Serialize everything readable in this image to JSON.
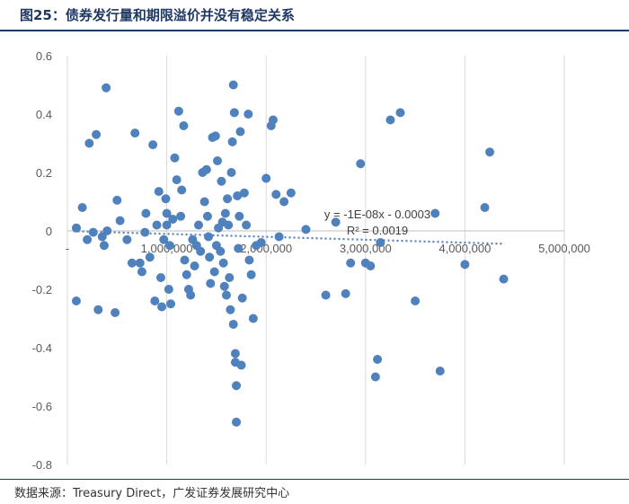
{
  "figure": {
    "title": "图25：债券发行量和期限溢价并没有稳定关系",
    "source": "数据来源：Treasury Direct，广发证券发展研究中心"
  },
  "colors": {
    "title": "#1f3864",
    "point": "#4f81bd",
    "trendline": "#4f81bd",
    "grid": "#d9d9d9"
  },
  "chart_data": {
    "type": "scatter",
    "title": "",
    "xlabel": "",
    "ylabel": "",
    "xlim": [
      0,
      5000000
    ],
    "ylim": [
      -0.8,
      0.6
    ],
    "x_ticks": [
      0,
      1000000,
      2000000,
      3000000,
      4000000,
      5000000
    ],
    "x_tick_labels": [
      "-",
      "1,000,000",
      "2,000,000",
      "3,000,000",
      "4,000,000",
      "5,000,000"
    ],
    "y_ticks": [
      0.6,
      0.4,
      0.2,
      0,
      -0.2,
      -0.4,
      -0.6,
      -0.8
    ],
    "y_tick_labels": [
      "0.6",
      "0.4",
      "0.2",
      "0",
      "-0.2",
      "-0.4",
      "-0.6",
      "-0.8"
    ],
    "grid": "vertical",
    "trendline": {
      "slope": -1e-08,
      "intercept": -0.0003,
      "equation": "y = -1E-08x - 0.0003",
      "r_squared": "R² = 0.0019"
    },
    "points": [
      [
        90000,
        -0.24
      ],
      [
        90000,
        0.01
      ],
      [
        150000,
        0.08
      ],
      [
        200000,
        -0.03
      ],
      [
        220000,
        0.3
      ],
      [
        260000,
        -0.005
      ],
      [
        290000,
        0.33
      ],
      [
        310000,
        -0.27
      ],
      [
        350000,
        -0.02
      ],
      [
        370000,
        -0.05
      ],
      [
        390000,
        0.49
      ],
      [
        400000,
        0.0
      ],
      [
        480000,
        -0.28
      ],
      [
        500000,
        0.105
      ],
      [
        530000,
        0.035
      ],
      [
        600000,
        -0.03
      ],
      [
        650000,
        -0.11
      ],
      [
        680000,
        0.335
      ],
      [
        730000,
        -0.11
      ],
      [
        750000,
        -0.14
      ],
      [
        780000,
        -0.005
      ],
      [
        790000,
        0.06
      ],
      [
        830000,
        -0.09
      ],
      [
        860000,
        0.295
      ],
      [
        880000,
        -0.24
      ],
      [
        900000,
        0.02
      ],
      [
        920000,
        0.135
      ],
      [
        940000,
        -0.16
      ],
      [
        950000,
        -0.26
      ],
      [
        970000,
        -0.03
      ],
      [
        990000,
        0.11
      ],
      [
        1000000,
        0.06
      ],
      [
        1000000,
        0.02
      ],
      [
        1020000,
        -0.2
      ],
      [
        1030000,
        -0.05
      ],
      [
        1040000,
        -0.25
      ],
      [
        1060000,
        0.04
      ],
      [
        1080000,
        0.25
      ],
      [
        1100000,
        0.175
      ],
      [
        1120000,
        0.41
      ],
      [
        1140000,
        0.05
      ],
      [
        1150000,
        0.14
      ],
      [
        1170000,
        0.36
      ],
      [
        1180000,
        -0.1
      ],
      [
        1200000,
        -0.15
      ],
      [
        1220000,
        -0.2
      ],
      [
        1240000,
        -0.22
      ],
      [
        1260000,
        -0.03
      ],
      [
        1280000,
        -0.12
      ],
      [
        1300000,
        -0.05
      ],
      [
        1320000,
        0.02
      ],
      [
        1340000,
        -0.07
      ],
      [
        1360000,
        0.2
      ],
      [
        1380000,
        0.1
      ],
      [
        1400000,
        0.21
      ],
      [
        1410000,
        0.05
      ],
      [
        1420000,
        -0.02
      ],
      [
        1430000,
        -0.09
      ],
      [
        1440000,
        -0.18
      ],
      [
        1460000,
        0.32
      ],
      [
        1480000,
        -0.14
      ],
      [
        1490000,
        0.325
      ],
      [
        1500000,
        -0.05
      ],
      [
        1510000,
        0.24
      ],
      [
        1520000,
        0.01
      ],
      [
        1540000,
        -0.07
      ],
      [
        1550000,
        0.17
      ],
      [
        1560000,
        0.03
      ],
      [
        1570000,
        -0.11
      ],
      [
        1580000,
        -0.19
      ],
      [
        1590000,
        0.06
      ],
      [
        1600000,
        -0.22
      ],
      [
        1610000,
        0.11
      ],
      [
        1620000,
        0.02
      ],
      [
        1630000,
        -0.16
      ],
      [
        1640000,
        -0.27
      ],
      [
        1650000,
        0.2
      ],
      [
        1660000,
        0.305
      ],
      [
        1670000,
        0.5
      ],
      [
        1670000,
        -0.32
      ],
      [
        1680000,
        0.405
      ],
      [
        1690000,
        -0.42
      ],
      [
        1690000,
        -0.45
      ],
      [
        1700000,
        -0.53
      ],
      [
        1700000,
        -0.655
      ],
      [
        1710000,
        0.12
      ],
      [
        1720000,
        -0.06
      ],
      [
        1730000,
        0.05
      ],
      [
        1740000,
        0.34
      ],
      [
        1750000,
        -0.46
      ],
      [
        1760000,
        -0.23
      ],
      [
        1780000,
        0.13
      ],
      [
        1800000,
        0.02
      ],
      [
        1820000,
        0.4
      ],
      [
        1830000,
        -0.1
      ],
      [
        1850000,
        -0.15
      ],
      [
        1870000,
        -0.3
      ],
      [
        1900000,
        -0.05
      ],
      [
        1950000,
        -0.04
      ],
      [
        2000000,
        0.18
      ],
      [
        2050000,
        0.36
      ],
      [
        2070000,
        0.38
      ],
      [
        2100000,
        0.125
      ],
      [
        2130000,
        -0.02
      ],
      [
        2180000,
        0.1
      ],
      [
        2250000,
        0.13
      ],
      [
        2400000,
        0.005
      ],
      [
        2600000,
        -0.22
      ],
      [
        2700000,
        0.03
      ],
      [
        2800000,
        -0.215
      ],
      [
        2850000,
        -0.11
      ],
      [
        2950000,
        0.23
      ],
      [
        3000000,
        -0.11
      ],
      [
        3050000,
        -0.12
      ],
      [
        3100000,
        -0.5
      ],
      [
        3120000,
        -0.44
      ],
      [
        3150000,
        -0.04
      ],
      [
        3250000,
        0.38
      ],
      [
        3350000,
        0.405
      ],
      [
        3500000,
        -0.24
      ],
      [
        3700000,
        0.06
      ],
      [
        3750000,
        -0.48
      ],
      [
        4000000,
        -0.115
      ],
      [
        4200000,
        0.08
      ],
      [
        4250000,
        0.27
      ],
      [
        4390000,
        -0.165
      ]
    ]
  }
}
